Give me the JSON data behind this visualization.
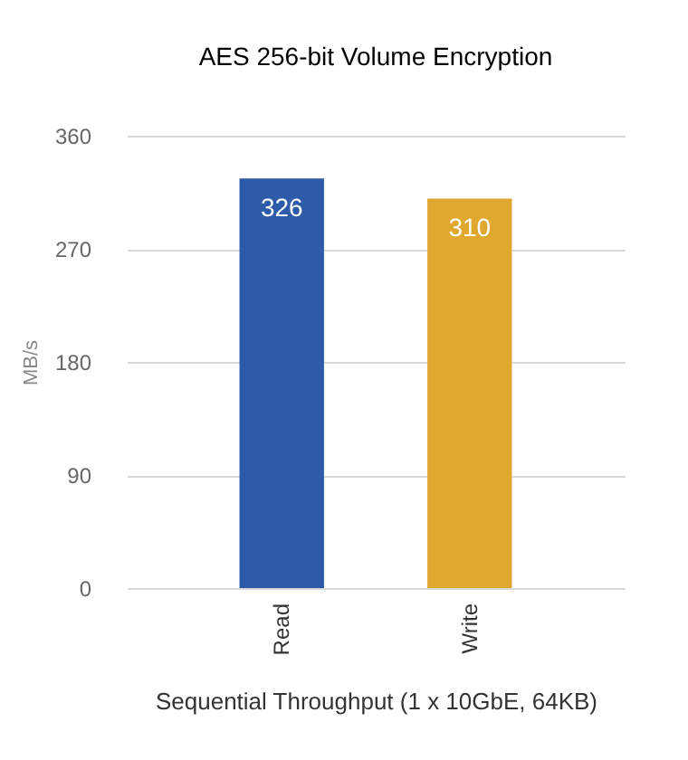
{
  "chart_data": {
    "type": "bar",
    "title": "AES 256-bit Volume Encryption",
    "xlabel": "Sequential Throughput (1 x 10GbE, 64KB)",
    "ylabel": "MB/s",
    "categories": [
      "Read",
      "Write"
    ],
    "values": [
      326,
      310
    ],
    "colors": [
      "#2e5ba8",
      "#e0a82e"
    ],
    "ylim": [
      0,
      360
    ],
    "yticks": [
      0,
      90,
      180,
      270,
      360
    ],
    "grid": "y",
    "data_labels": true
  }
}
